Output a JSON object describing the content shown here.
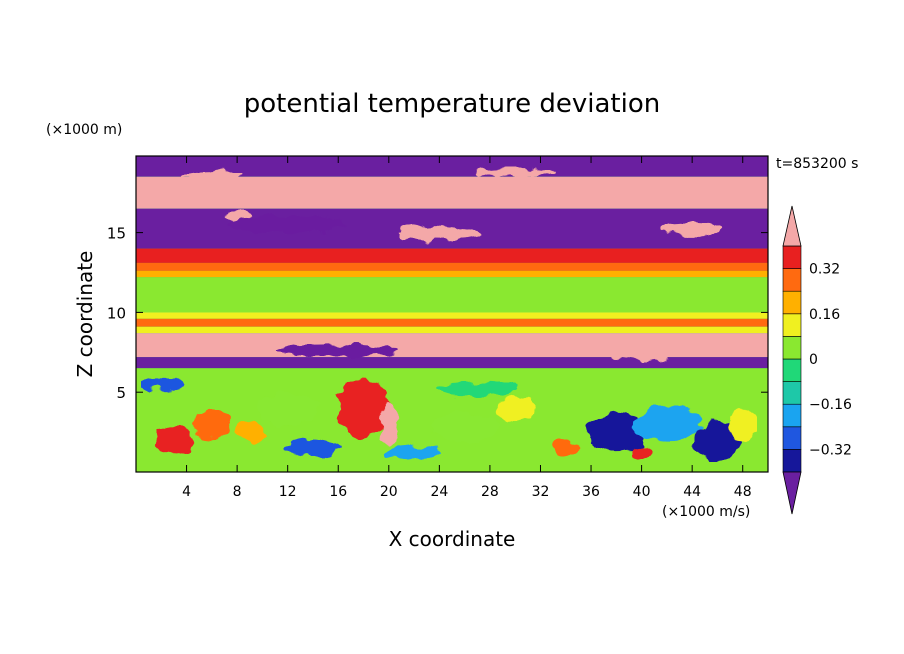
{
  "chart_data": {
    "type": "heatmap",
    "title": "potential temperature deviation",
    "xlabel": "X coordinate",
    "ylabel": "Z coordinate",
    "x_unit": "(×1000 m/s)",
    "y_unit": "(×1000 m)",
    "time_label": "t=853200 s",
    "xlim": [
      0,
      50
    ],
    "ylim": [
      0,
      19.8
    ],
    "x_ticks": [
      "4",
      "8",
      "12",
      "16",
      "20",
      "24",
      "28",
      "32",
      "36",
      "40",
      "44",
      "48"
    ],
    "y_ticks": [
      "5",
      "10",
      "15"
    ],
    "colorbar": {
      "labels": [
        "0.32",
        "0.16",
        "0",
        "-0.16",
        "-0.32"
      ],
      "label_text": [
        "0.32",
        "0.16",
        "0",
        "−0.16",
        "−0.32"
      ],
      "levels": [
        -0.4,
        -0.32,
        -0.24,
        -0.16,
        -0.08,
        0,
        0.08,
        0.16,
        0.24,
        0.32,
        0.4
      ],
      "colors": [
        "#6a1fa0",
        "#16179a",
        "#1f57e0",
        "#1aa4f0",
        "#1ec8a8",
        "#20d878",
        "#8ae830",
        "#f0f020",
        "#ffb000",
        "#ff6a10",
        "#e82020",
        "#f4a8a8"
      ],
      "extend": "both"
    },
    "description_bands": [
      {
        "z_range": [
          18.5,
          19.8
        ],
        "value": -0.45
      },
      {
        "z_range": [
          16.5,
          18.5
        ],
        "value": 0.45
      },
      {
        "z_range": [
          14,
          16.5
        ],
        "value": -0.45
      },
      {
        "z_range": [
          13.1,
          14
        ],
        "value": 0.36
      },
      {
        "z_range": [
          12.6,
          13.1
        ],
        "value": 0.28
      },
      {
        "z_range": [
          12.2,
          12.6
        ],
        "value": 0.2
      },
      {
        "z_range": [
          10,
          12.2
        ],
        "value": 0.05
      },
      {
        "z_range": [
          9.6,
          10
        ],
        "value": 0.12
      },
      {
        "z_range": [
          9.1,
          9.6
        ],
        "value": 0.28
      },
      {
        "z_range": [
          8.7,
          9.1
        ],
        "value": 0.12
      },
      {
        "z_range": [
          7.2,
          8.7
        ],
        "value": 0.45
      },
      {
        "z_range": [
          6.5,
          7.2
        ],
        "value": -0.45
      },
      {
        "z_range": [
          0,
          6.5
        ],
        "value": 0.0
      }
    ]
  }
}
